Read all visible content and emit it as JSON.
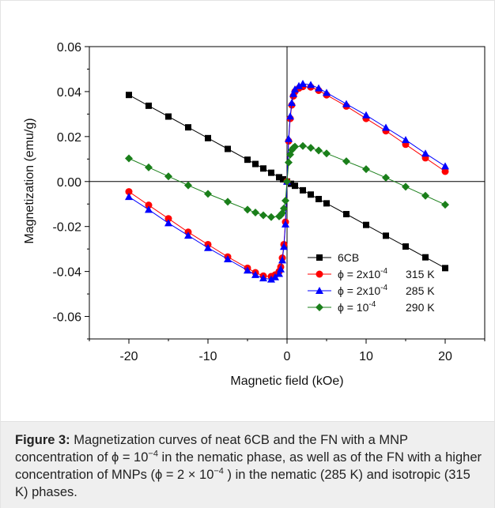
{
  "figure": {
    "chart_data": {
      "type": "line",
      "xlabel": "Magnetic field (kOe)",
      "ylabel": "Magnetization (emu/g)",
      "xlim": [
        -25,
        25
      ],
      "ylim": [
        -0.07,
        0.06
      ],
      "x_ticks": [
        -20,
        -10,
        0,
        10,
        20
      ],
      "x_tick_labels": [
        "-20",
        "-10",
        "0",
        "10",
        "20"
      ],
      "y_ticks": [
        -0.06,
        -0.04,
        -0.02,
        0.0,
        0.02,
        0.04,
        0.06
      ],
      "y_tick_labels": [
        "-0.06",
        "-0.04",
        "-0.02",
        "0.00",
        "0.02",
        "0.04",
        "0.06"
      ],
      "grid": false,
      "legend_position": "bottom-right",
      "series": [
        {
          "name": "6CB",
          "color": "#000000",
          "marker": "square",
          "x": [
            -20,
            -17.5,
            -15,
            -12.5,
            -10,
            -7.5,
            -5,
            -4,
            -3,
            -2,
            -1,
            -0.5,
            0,
            0.5,
            1,
            2,
            3,
            4,
            5,
            7.5,
            10,
            12.5,
            15,
            17.5,
            20
          ],
          "y": [
            0.0385,
            0.0337,
            0.0289,
            0.0241,
            0.0193,
            0.0145,
            0.0097,
            0.0078,
            0.0058,
            0.0039,
            0.0019,
            0.001,
            0.0,
            -0.001,
            -0.0019,
            -0.0039,
            -0.0058,
            -0.0078,
            -0.0097,
            -0.0145,
            -0.0193,
            -0.0241,
            -0.0289,
            -0.0337,
            -0.0385
          ]
        },
        {
          "name_prefix": "ϕ = 2x10",
          "name_exp": "-4",
          "name_suffix": "315 K",
          "color": "#ff0000",
          "marker": "circle",
          "x": [
            -20,
            -17.5,
            -15,
            -12.5,
            -10,
            -7.5,
            -5,
            -4,
            -3,
            -2,
            -1.5,
            -1,
            -0.8,
            -0.6,
            -0.4,
            -0.2,
            0,
            0.2,
            0.4,
            0.6,
            0.8,
            1,
            1.5,
            2,
            3,
            4,
            5,
            7.5,
            10,
            12.5,
            15,
            17.5,
            20
          ],
          "y": [
            -0.0045,
            -0.0105,
            -0.0165,
            -0.0225,
            -0.028,
            -0.0335,
            -0.0385,
            -0.0405,
            -0.042,
            -0.0422,
            -0.0415,
            -0.04,
            -0.038,
            -0.034,
            -0.028,
            -0.018,
            0.0,
            0.018,
            0.028,
            0.034,
            0.038,
            0.04,
            0.0415,
            0.0422,
            0.042,
            0.0405,
            0.0385,
            0.0335,
            0.028,
            0.0225,
            0.0165,
            0.0105,
            0.0045
          ]
        },
        {
          "name_prefix": "ϕ = 2x10",
          "name_exp": "-4",
          "name_suffix": "285 K",
          "color": "#0000ff",
          "marker": "triangle",
          "x": [
            -20,
            -17.5,
            -15,
            -12.5,
            -10,
            -7.5,
            -5,
            -4,
            -3,
            -2,
            -1.5,
            -1,
            -0.8,
            -0.6,
            -0.4,
            -0.2,
            0,
            0.2,
            0.4,
            0.6,
            0.8,
            1,
            1.5,
            2,
            3,
            4,
            5,
            7.5,
            10,
            12.5,
            15,
            17.5,
            20
          ],
          "y": [
            -0.0068,
            -0.0125,
            -0.0185,
            -0.024,
            -0.0295,
            -0.0345,
            -0.0395,
            -0.0415,
            -0.043,
            -0.0435,
            -0.0425,
            -0.041,
            -0.039,
            -0.035,
            -0.029,
            -0.019,
            0.0,
            0.019,
            0.029,
            0.035,
            0.039,
            0.041,
            0.0425,
            0.0435,
            0.043,
            0.0415,
            0.0395,
            0.0345,
            0.0295,
            0.024,
            0.0185,
            0.0125,
            0.0068
          ]
        },
        {
          "name_prefix": "ϕ = 10",
          "name_exp": "-4",
          "name_suffix": "290 K",
          "color": "#1a7f1a",
          "marker": "diamond",
          "x": [
            -20,
            -17.5,
            -15,
            -12.5,
            -10,
            -7.5,
            -5,
            -4,
            -3,
            -2,
            -1,
            -0.8,
            -0.6,
            -0.4,
            -0.2,
            0,
            0.2,
            0.4,
            0.6,
            0.8,
            1,
            2,
            3,
            4,
            5,
            7.5,
            10,
            12.5,
            15,
            17.5,
            20
          ],
          "y": [
            0.0103,
            0.0063,
            0.0023,
            -0.0017,
            -0.0055,
            -0.009,
            -0.0125,
            -0.0138,
            -0.015,
            -0.0158,
            -0.0155,
            -0.015,
            -0.014,
            -0.012,
            -0.0085,
            0.0,
            0.0085,
            0.012,
            0.014,
            0.015,
            0.0155,
            0.0158,
            0.015,
            0.0138,
            0.0125,
            0.009,
            0.0055,
            0.0017,
            -0.0023,
            -0.0063,
            -0.0103
          ]
        }
      ]
    }
  },
  "caption": {
    "label": "Figure 3:",
    "text_1": " Magnetization curves of neat 6CB and the FN with a MNP concentration of ϕ = 10",
    "exp_1": "−4",
    "text_2": " in the nematic phase, as well as of the FN with a higher concentration of MNPs (ϕ = 2 × 10",
    "exp_2": "−4",
    "text_3": " ) in the nematic (285 K) and isotropic (315 K) phases."
  }
}
